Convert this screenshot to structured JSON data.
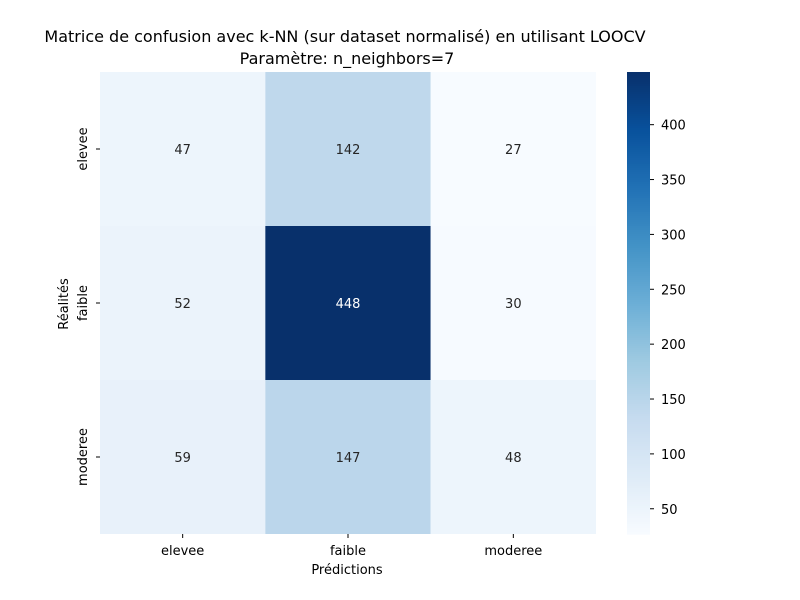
{
  "chart_data": {
    "type": "heatmap",
    "title_line1": "Matrice de confusion avec k-NN (sur dataset normalisé) en utilisant LOOCV",
    "title_line2": "Paramètre: n_neighbors=7",
    "xlabel": "Prédictions",
    "ylabel": "Réalités",
    "x_categories": [
      "elevee",
      "faible",
      "moderee"
    ],
    "y_categories": [
      "elevee",
      "faible",
      "moderee"
    ],
    "values": [
      [
        47,
        142,
        27
      ],
      [
        52,
        448,
        30
      ],
      [
        59,
        147,
        48
      ]
    ],
    "colormap": "Blues",
    "color_range": [
      27,
      448
    ],
    "colorbar_ticks": [
      50,
      100,
      150,
      200,
      250,
      300,
      350,
      400
    ],
    "light_text_color": "#ffffff",
    "dark_text_color": "#262626"
  }
}
